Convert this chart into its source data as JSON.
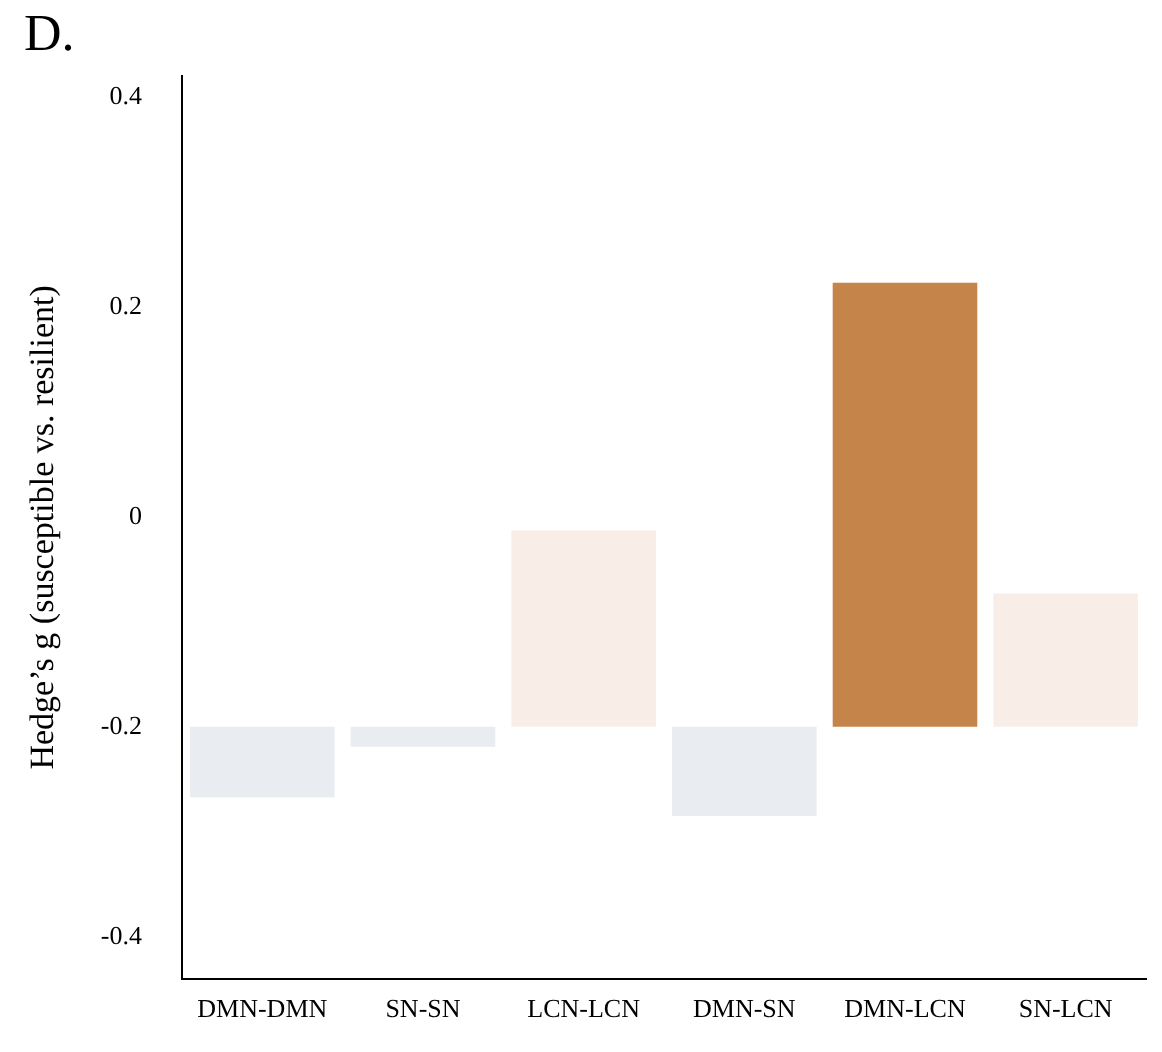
{
  "chart_data": {
    "type": "bar",
    "title": "D.",
    "ylabel": "Hedge’s g (susceptible vs. resilient)",
    "categories": [
      "DMN-DMN",
      "SN-SN",
      "LCN-LCN",
      "DMN-SN",
      "DMN-LCN",
      "SN-LCN"
    ],
    "base": [
      -0.2,
      -0.2,
      -0.2,
      -0.2,
      -0.2,
      -0.2
    ],
    "values": [
      -0.067,
      -0.019,
      0.187,
      -0.085,
      0.423,
      0.127
    ],
    "colors": [
      "#e9ecf1",
      "#e9ecf1",
      "#f8eee7",
      "#e9ecf1",
      "#c4844a",
      "#f8eee7"
    ],
    "ylim": [
      -0.44,
      0.42
    ],
    "yticks": [
      -0.4,
      -0.2,
      0,
      0.2,
      0.4
    ],
    "grid": false,
    "legend": false
  }
}
